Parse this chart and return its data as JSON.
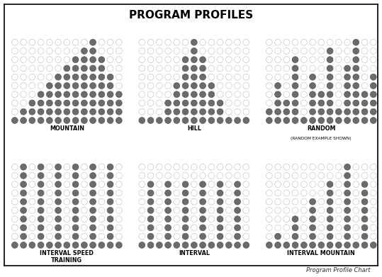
{
  "title": "PROGRAM PROFILES",
  "subtitle": "Program Profile Chart",
  "filled_color": "#6b6b6b",
  "empty_color": "#ffffff",
  "empty_edge": "#bbbbbb",
  "filled_edge": "#555555",
  "background": "#ffffff",
  "cols": 13,
  "rows": 10,
  "mountain_h": [
    1,
    2,
    3,
    4,
    5,
    6,
    7,
    8,
    9,
    10,
    8,
    6,
    4
  ],
  "hill_h": [
    1,
    1,
    1,
    3,
    5,
    8,
    10,
    8,
    5,
    3,
    1,
    1,
    1
  ],
  "random_h": [
    2,
    5,
    3,
    8,
    1,
    6,
    4,
    9,
    2,
    7,
    10,
    4,
    6
  ],
  "interval_speed_h": [
    1,
    10,
    1,
    10,
    1,
    10,
    1,
    10,
    1,
    10,
    1,
    10,
    1
  ],
  "interval_h": [
    1,
    8,
    1,
    8,
    1,
    8,
    1,
    8,
    1,
    8,
    1,
    8,
    1
  ],
  "interval_mountain_h": [
    1,
    2,
    1,
    4,
    1,
    6,
    1,
    8,
    1,
    10,
    1,
    8,
    1
  ],
  "programs": [
    {
      "key": "mountain",
      "heights_key": "mountain_h",
      "label": "MOUNTAIN",
      "label2": ""
    },
    {
      "key": "hill",
      "heights_key": "hill_h",
      "label": "HILL",
      "label2": ""
    },
    {
      "key": "random",
      "heights_key": "random_h",
      "label": "RANDOM",
      "label2": "(RANDOM EXAMPLE SHOWN)"
    },
    {
      "key": "interval_speed",
      "heights_key": "interval_speed_h",
      "label": "INTERVAL SPEED\nTRAINING",
      "label2": ""
    },
    {
      "key": "interval",
      "heights_key": "interval_h",
      "label": "INTERVAL",
      "label2": ""
    },
    {
      "key": "interval_mountain",
      "heights_key": "interval_mountain_h",
      "label": "INTERVAL MOUNTAIN",
      "label2": ""
    }
  ]
}
